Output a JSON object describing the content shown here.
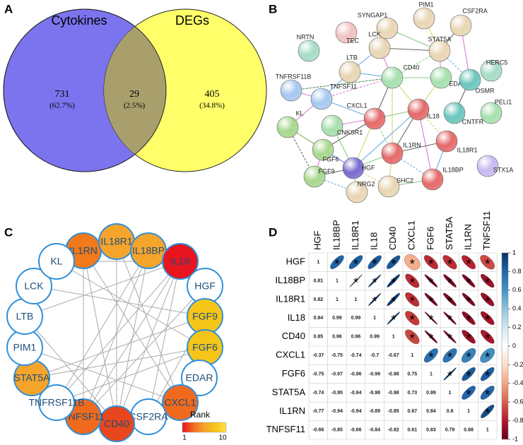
{
  "panel_a": {
    "letter": "A",
    "sets": [
      {
        "name": "Cytokines",
        "color": "#7b74ee"
      },
      {
        "name": "DEGs",
        "color": "#ffff6a"
      }
    ],
    "overlap_color": "#a99f6c",
    "regions": [
      {
        "count": 731,
        "percent": "(62.7%)"
      },
      {
        "count": 29,
        "percent": "(2.5%)"
      },
      {
        "count": 405,
        "percent": "(34.8%)"
      }
    ]
  },
  "panel_b": {
    "letter": "B",
    "nodes": [
      {
        "label": "SYNGAP1",
        "color": "#e8d6b4"
      },
      {
        "label": "PIM1",
        "color": "#e8d6b4"
      },
      {
        "label": "CSF2RA",
        "color": "#e8d6b4"
      },
      {
        "label": "NRTN",
        "color": "#a6dcc6"
      },
      {
        "label": "TEC",
        "color": "#f2c2c2"
      },
      {
        "label": "LCK",
        "color": "#e8d6b4"
      },
      {
        "label": "STAT5A",
        "color": "#e8d6b4"
      },
      {
        "label": "HERC5",
        "color": "#a6dcc6"
      },
      {
        "label": "LTB",
        "color": "#e8d6b4"
      },
      {
        "label": "CD40",
        "color": "#a6e0ae"
      },
      {
        "label": "EDAR",
        "color": "#a6e0ae"
      },
      {
        "label": "OSMR",
        "color": "#6cc6be"
      },
      {
        "label": "TNFRSF11B",
        "color": "#a8c8f0"
      },
      {
        "label": "TNFSF11",
        "color": "#a8c8f0"
      },
      {
        "label": "IL18",
        "color": "#e46a6a"
      },
      {
        "label": "CXCL1",
        "color": "#e46a6a"
      },
      {
        "label": "CNKSR1",
        "color": "#a6e0ae"
      },
      {
        "label": "KL",
        "color": "#a8d88e"
      },
      {
        "label": "CNTFR",
        "color": "#6cc6be"
      },
      {
        "label": "PELI1",
        "color": "#a6e0ae"
      },
      {
        "label": "FGF6",
        "color": "#a8d88e"
      },
      {
        "label": "IL18R1",
        "color": "#e46a6a"
      },
      {
        "label": "IL1RN",
        "color": "#e46a6a"
      },
      {
        "label": "FGF9",
        "color": "#a8d88e"
      },
      {
        "label": "HGF",
        "color": "#7a6cd0"
      },
      {
        "label": "STX1A",
        "color": "#c8b8f0"
      },
      {
        "label": "IL18BP",
        "color": "#e46a6a"
      },
      {
        "label": "SHC2",
        "color": "#e8d6b4"
      },
      {
        "label": "NRG2",
        "color": "#e8d6b4"
      }
    ]
  },
  "panel_c": {
    "letter": "C",
    "nodes": [
      {
        "label": "IL1RN",
        "color": "#f07a1c"
      },
      {
        "label": "IL18R1",
        "color": "#f5a42c"
      },
      {
        "label": "IL18BP",
        "color": "#f5a42c"
      },
      {
        "label": "IL18",
        "color": "#e8141e"
      },
      {
        "label": "HGF",
        "color": "#ffffff"
      },
      {
        "label": "FGF9",
        "color": "#f5c518"
      },
      {
        "label": "FGF6",
        "color": "#f5c518"
      },
      {
        "label": "EDAR",
        "color": "#ffffff"
      },
      {
        "label": "CXCL1",
        "color": "#f06a1e"
      },
      {
        "label": "CSF2RA",
        "color": "#ffffff"
      },
      {
        "label": "CD40",
        "color": "#e8461c"
      },
      {
        "label": "TNFSF11",
        "color": "#f06a1e"
      },
      {
        "label": "TNFRSF11B",
        "color": "#ffffff"
      },
      {
        "label": "STAT5A",
        "color": "#f5a42c"
      },
      {
        "label": "PIM1",
        "color": "#ffffff"
      },
      {
        "label": "LTB",
        "color": "#ffffff"
      },
      {
        "label": "LCK",
        "color": "#ffffff"
      },
      {
        "label": "KL",
        "color": "#ffffff"
      }
    ],
    "legend": {
      "title": "Rank",
      "min": 1,
      "max": 10,
      "colors": [
        "#e8141e",
        "#f06a1e",
        "#f5a42c",
        "#f5c518",
        "#ffe14d"
      ]
    }
  },
  "panel_d": {
    "letter": "D",
    "labels": [
      "HGF",
      "IL18BP",
      "IL18R1",
      "IL18",
      "CD40",
      "CXCL1",
      "FGF6",
      "STAT5A",
      "IL1RN",
      "TNFSF11"
    ],
    "rows": [
      [
        1
      ],
      [
        0.81,
        1
      ],
      [
        0.82,
        1,
        1
      ],
      [
        0.84,
        0.99,
        0.99,
        1
      ],
      [
        0.85,
        0.96,
        0.96,
        0.99,
        1
      ],
      [
        -0.37,
        -0.75,
        -0.74,
        -0.7,
        -0.67,
        1
      ],
      [
        -0.75,
        -0.97,
        -0.96,
        -0.99,
        -0.98,
        0.75,
        1
      ],
      [
        -0.74,
        -0.95,
        -0.94,
        -0.98,
        -0.98,
        0.73,
        0.99,
        1
      ],
      [
        -0.77,
        -0.94,
        -0.94,
        -0.89,
        -0.85,
        0.67,
        0.84,
        0.8,
        1
      ],
      [
        -0.66,
        -0.85,
        -0.86,
        -0.84,
        -0.82,
        0.61,
        0.83,
        0.79,
        0.88,
        1
      ]
    ],
    "marker": "*",
    "colorbar": {
      "lim": [
        -1,
        1
      ],
      "ticks": [
        1,
        0.8,
        0.6,
        0.4,
        0.2,
        0,
        -0.2,
        -0.4,
        -0.6,
        -0.8,
        -1
      ],
      "colors": [
        "#67001f",
        "#b2182b",
        "#d6604d",
        "#f4a582",
        "#fddbc7",
        "#ffffff",
        "#d1e5f0",
        "#92c5de",
        "#4393c3",
        "#2166ac",
        "#053061"
      ]
    }
  }
}
